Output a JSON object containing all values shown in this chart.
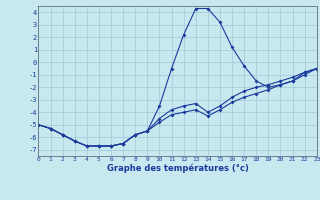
{
  "xlabel": "Graphe des températures (°c)",
  "background_color": "#c8e8f0",
  "grid_color": "#a0c8d8",
  "line_color": "#1a3a9c",
  "xlim": [
    0,
    23
  ],
  "ylim": [
    -7.5,
    4.5
  ],
  "yticks": [
    -7,
    -6,
    -5,
    -4,
    -3,
    -2,
    -1,
    0,
    1,
    2,
    3,
    4
  ],
  "hours": [
    0,
    1,
    2,
    3,
    4,
    5,
    6,
    7,
    8,
    9,
    10,
    11,
    12,
    13,
    14,
    15,
    16,
    17,
    18,
    19,
    20,
    21,
    22,
    23
  ],
  "curve_high": [
    -5.0,
    -5.3,
    -5.8,
    -6.3,
    -6.7,
    -6.7,
    -6.7,
    -6.5,
    -5.8,
    -5.5,
    -3.5,
    -0.5,
    2.2,
    4.3,
    4.3,
    3.2,
    1.2,
    -0.3,
    -1.5,
    -2.0,
    -1.8,
    -1.5,
    -0.8,
    -0.5
  ],
  "curve_mid": [
    -5.0,
    -5.3,
    -5.8,
    -6.3,
    -6.7,
    -6.7,
    -6.7,
    -6.5,
    -5.8,
    -5.5,
    -4.5,
    -3.8,
    -3.5,
    -3.3,
    -4.0,
    -3.5,
    -2.8,
    -2.3,
    -2.0,
    -1.8,
    -1.5,
    -1.2,
    -0.8,
    -0.5
  ],
  "curve_low": [
    -5.0,
    -5.3,
    -5.8,
    -6.3,
    -6.7,
    -6.7,
    -6.7,
    -6.5,
    -5.8,
    -5.5,
    -4.8,
    -4.2,
    -4.0,
    -3.8,
    -4.3,
    -3.8,
    -3.2,
    -2.8,
    -2.5,
    -2.2,
    -1.8,
    -1.5,
    -1.0,
    -0.5
  ]
}
